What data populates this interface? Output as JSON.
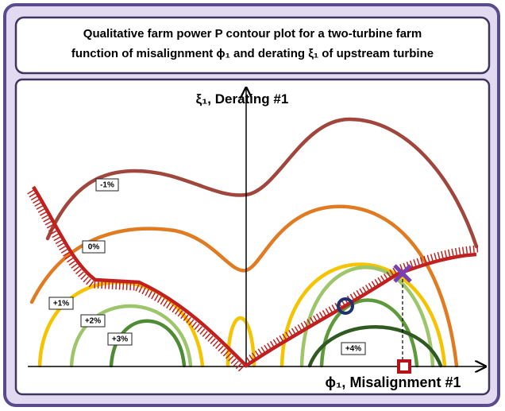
{
  "title": {
    "line1": "Qualitative farm power P contour plot for a two-turbine farm",
    "line2": "function of misalignment ϕ₁ and derating ξ₁ of upstream turbine"
  },
  "axes": {
    "y_label": "ξ₁, Derating #1",
    "x_label": "ϕ₁, Misalignment #1"
  },
  "contours": [
    {
      "label": "-1%"
    },
    {
      "label": "0%"
    },
    {
      "label": "+1%"
    },
    {
      "label": "+2%"
    },
    {
      "label": "+3%"
    },
    {
      "label": "+4%"
    }
  ]
}
